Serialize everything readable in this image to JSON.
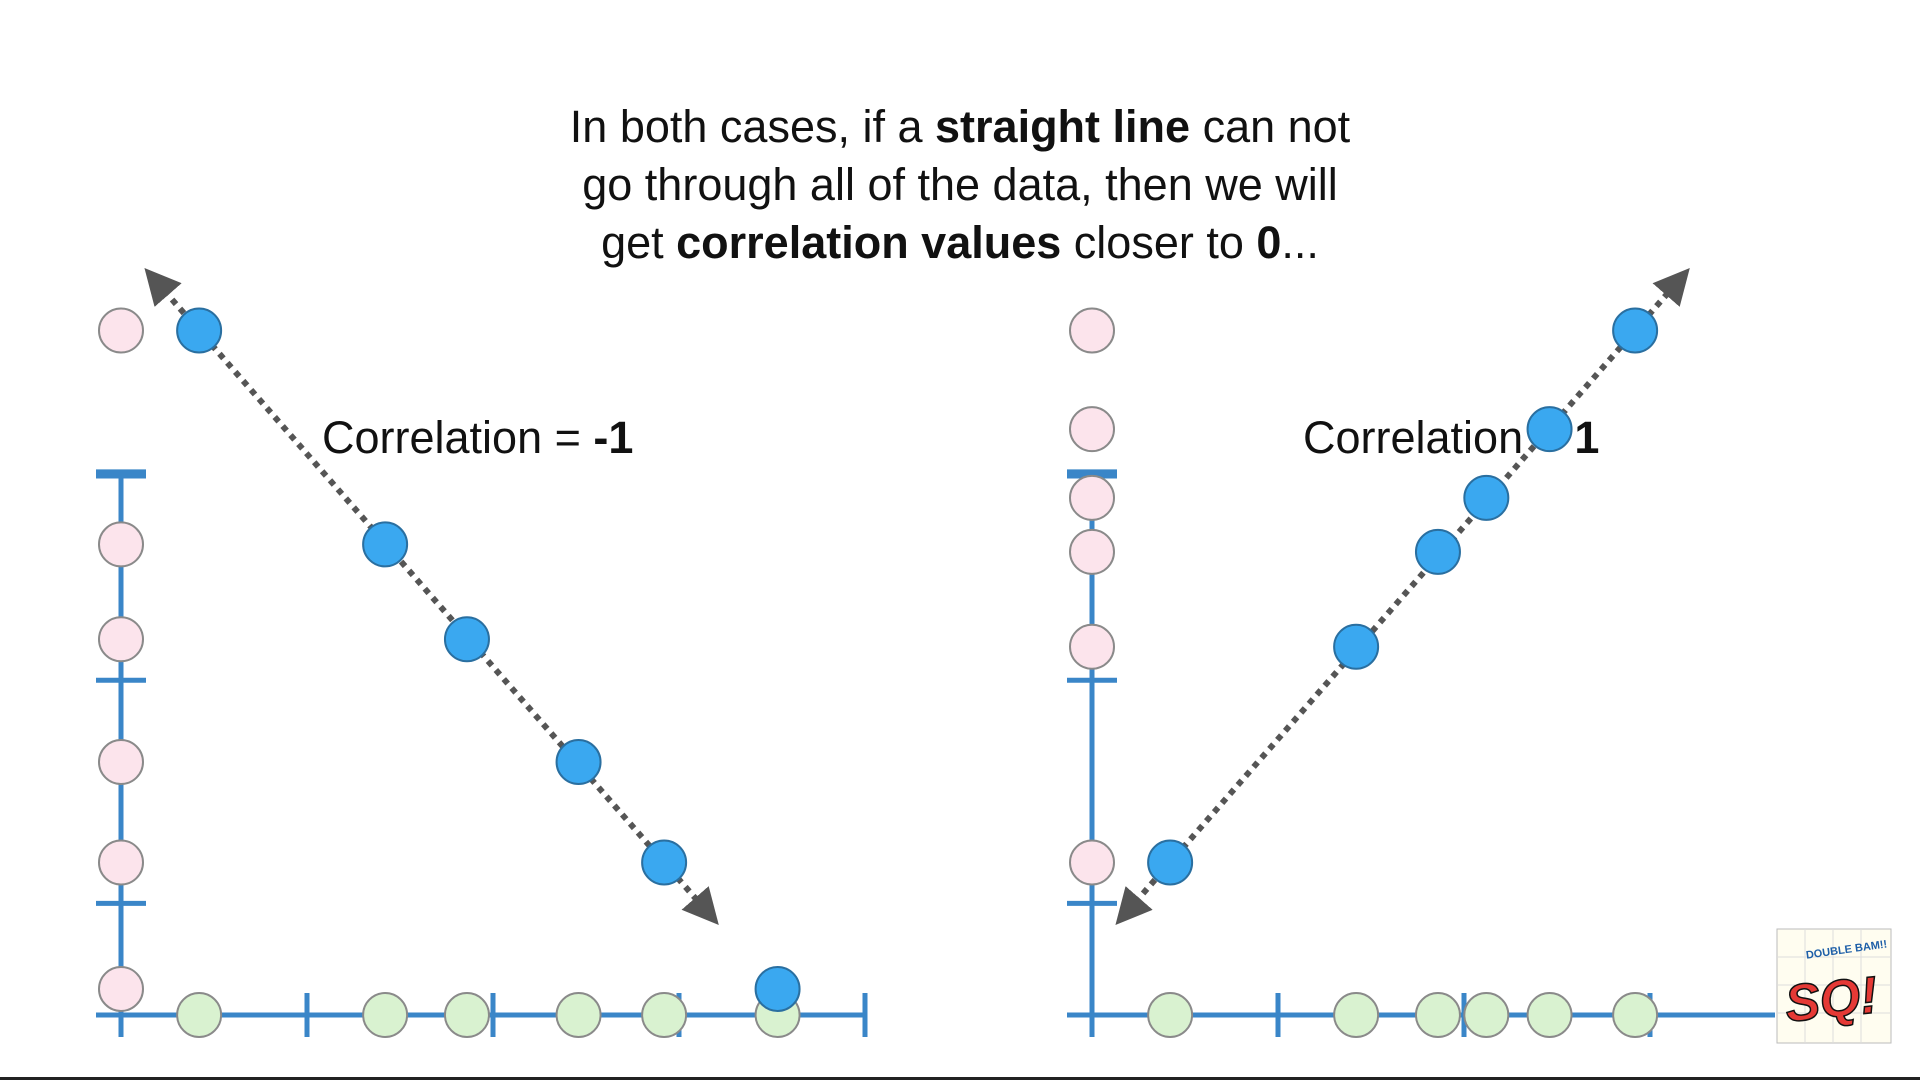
{
  "caption": {
    "line1_pre": "In both cases, if a ",
    "line1_bold": "straight line",
    "line1_post": " can not",
    "line2": "go through all of the data, then we will",
    "line3_pre": "get ",
    "line3_bold": "correlation values",
    "line3_mid": " closer to ",
    "line3_bold2": "0",
    "line3_post": "..."
  },
  "colors": {
    "axis": "#3a86c8",
    "point_fill": "#3aa8f0",
    "point_stroke": "#2a6fa0",
    "x_marker_fill": "#d9f2d0",
    "y_marker_fill": "#fce4ec",
    "marker_stroke": "#8a8a8a",
    "trend_line": "#555555"
  },
  "logo": {
    "text_main": "SQ!",
    "text_small": "DOUBLE BAM!!"
  },
  "chart_data": [
    {
      "type": "scatter",
      "title_prefix": "Correlation = ",
      "title_value": "-1",
      "trend_line": "negative, double-headed dotted arrow through all points",
      "xlim": [
        0,
        4
      ],
      "ylim": [
        0,
        4
      ],
      "points": [
        {
          "x": 0.42,
          "y": 3.68
        },
        {
          "x": 1.42,
          "y": 2.53
        },
        {
          "x": 1.86,
          "y": 2.02
        },
        {
          "x": 2.46,
          "y": 1.36
        },
        {
          "x": 2.92,
          "y": 0.82
        }
      ],
      "outlier_point": {
        "x": 3.53,
        "y": 0.14
      },
      "x_markers": [
        0.42,
        1.42,
        1.86,
        2.46,
        2.92,
        3.53
      ],
      "y_markers": [
        3.68,
        2.53,
        2.02,
        1.36,
        0.82,
        0.14
      ]
    },
    {
      "type": "scatter",
      "title_prefix": "Correlation = ",
      "title_value": "1",
      "trend_line": "positive, double-headed dotted arrow through all points",
      "xlim": [
        0,
        4
      ],
      "ylim": [
        0,
        4
      ],
      "points": [
        {
          "x": 0.42,
          "y": 0.82
        },
        {
          "x": 1.42,
          "y": 1.98
        },
        {
          "x": 1.86,
          "y": 2.49
        },
        {
          "x": 2.12,
          "y": 2.78
        },
        {
          "x": 2.46,
          "y": 3.15
        },
        {
          "x": 2.92,
          "y": 3.68
        }
      ],
      "x_markers": [
        0.42,
        1.42,
        1.86,
        2.12,
        2.46,
        2.92
      ],
      "y_markers": [
        0.82,
        1.98,
        2.49,
        2.78,
        3.15,
        3.68
      ]
    }
  ]
}
